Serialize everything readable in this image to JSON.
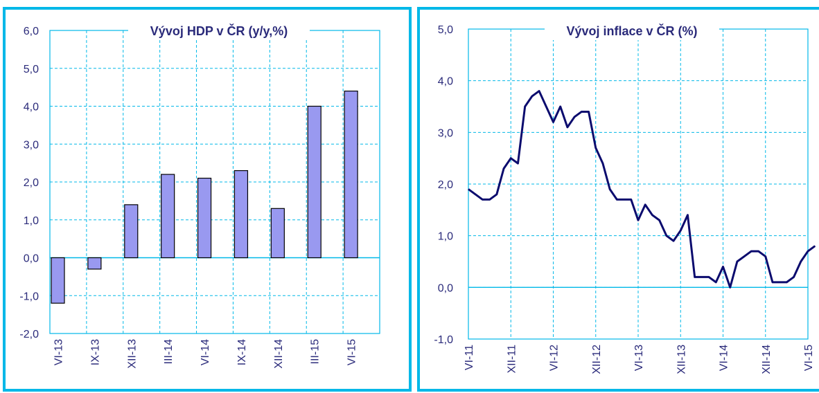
{
  "chart_data": [
    {
      "type": "bar",
      "title": "Vývoj  HDP v ČR (y/y,%)",
      "categories": [
        "VI-13",
        "IX-13",
        "XII-13",
        "III-14",
        "VI-14",
        "IX-14",
        "XII-14",
        "III-15",
        "VI-15"
      ],
      "values": [
        -1.2,
        -0.3,
        1.4,
        2.2,
        2.1,
        2.3,
        1.3,
        4.0,
        4.4
      ],
      "ylim": [
        -2.0,
        6.0
      ],
      "yticks": [
        "-2,0",
        "-1,0",
        "0,0",
        "1,0",
        "2,0",
        "3,0",
        "4,0",
        "5,0",
        "6,0"
      ],
      "grid": true,
      "colors": {
        "bar": "#9999f0",
        "bar_edge": "#000000",
        "grid": "#00b8e8",
        "text": "#2a2a7a"
      }
    },
    {
      "type": "line",
      "title": "Vývoj  inflace v ČR (%)",
      "x": [
        "VI-11",
        "VII-11",
        "VIII-11",
        "IX-11",
        "X-11",
        "XI-11",
        "XII-11",
        "I-12",
        "II-12",
        "III-12",
        "IV-12",
        "V-12",
        "VI-12",
        "VII-12",
        "VIII-12",
        "IX-12",
        "X-12",
        "XI-12",
        "XII-12",
        "I-13",
        "II-13",
        "III-13",
        "IV-13",
        "V-13",
        "VI-13",
        "VII-13",
        "VIII-13",
        "IX-13",
        "X-13",
        "XI-13",
        "XII-13",
        "I-14",
        "II-14",
        "III-14",
        "IV-14",
        "V-14",
        "VI-14",
        "VII-14",
        "VIII-14",
        "IX-14",
        "X-14",
        "XI-14",
        "XII-14",
        "I-15",
        "II-15",
        "III-15",
        "IV-15",
        "V-15",
        "VI-15",
        "VII-15"
      ],
      "values": [
        1.9,
        1.8,
        1.7,
        1.7,
        1.8,
        2.3,
        2.5,
        2.4,
        3.5,
        3.7,
        3.8,
        3.5,
        3.2,
        3.5,
        3.1,
        3.3,
        3.4,
        3.4,
        2.7,
        2.4,
        1.9,
        1.7,
        1.7,
        1.7,
        1.3,
        1.6,
        1.4,
        1.3,
        1.0,
        0.9,
        1.1,
        1.4,
        0.2,
        0.2,
        0.2,
        0.1,
        0.4,
        0.0,
        0.5,
        0.6,
        0.7,
        0.7,
        0.6,
        0.1,
        0.1,
        0.1,
        0.2,
        0.5,
        0.7,
        0.8
      ],
      "xtick_labels": [
        "VI-11",
        "XII-11",
        "VI-12",
        "XII-12",
        "VI-13",
        "XII-13",
        "VI-14",
        "XII-14",
        "VI-15"
      ],
      "ylim": [
        -1.0,
        5.0
      ],
      "yticks": [
        "-1,0",
        "0,0",
        "1,0",
        "2,0",
        "3,0",
        "4,0",
        "5,0"
      ],
      "grid": true,
      "colors": {
        "line": "#0b0b6e",
        "grid": "#00b8e8",
        "text": "#2a2a7a"
      }
    }
  ]
}
